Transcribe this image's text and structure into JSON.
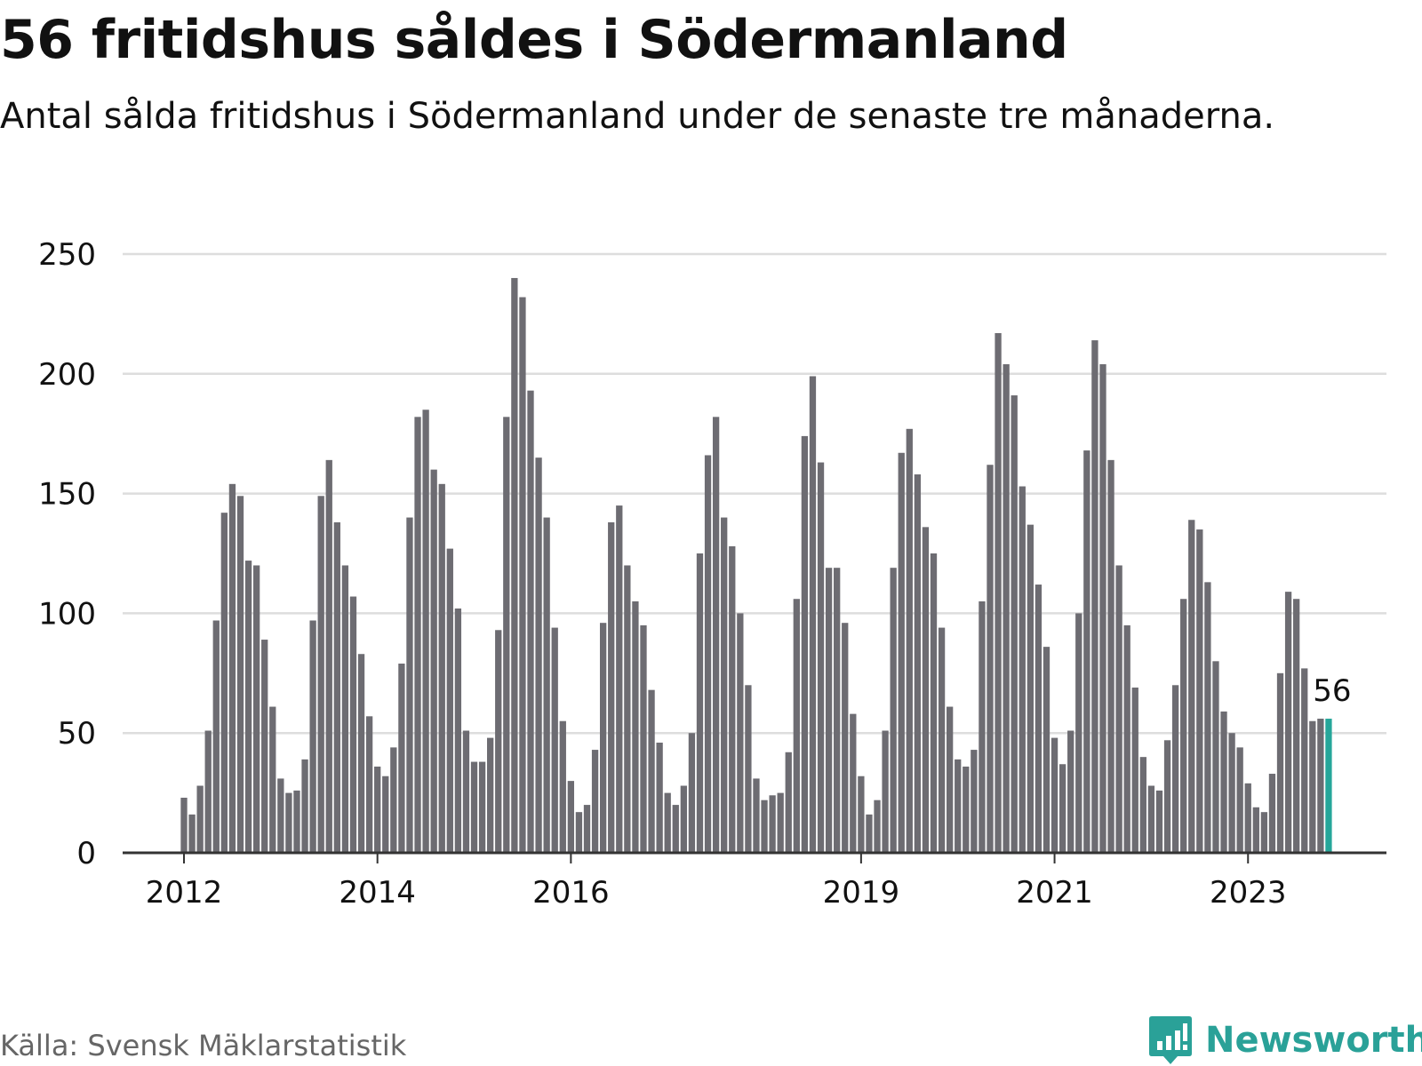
{
  "title": "56 fritidshus såldes i Södermanland",
  "subtitle": "Antal sålda fritidshus i Södermanland under de senaste tre månaderna.",
  "source": "Källa: Svensk Mäklarstatistik",
  "brand": "Newsworthy",
  "colors": {
    "bar": "#6d6c72",
    "highlight": "#26a69a",
    "grid": "#dddddd",
    "axis": "#333333",
    "text": "#111111",
    "brand": "#2aa198"
  },
  "chart_data": {
    "type": "bar",
    "xlabel": "",
    "ylabel": "",
    "ylim": [
      0,
      250
    ],
    "yticks": [
      0,
      50,
      100,
      150,
      200,
      250
    ],
    "xticks": [
      {
        "label": "2012",
        "index": 0
      },
      {
        "label": "2014",
        "index": 24
      },
      {
        "label": "2016",
        "index": 48
      },
      {
        "label": "2019",
        "index": 84
      },
      {
        "label": "2021",
        "index": 108
      },
      {
        "label": "2023",
        "index": 132
      }
    ],
    "grid": true,
    "legend": "none",
    "highlight_index": 142,
    "highlight_label": "56",
    "values": [
      23,
      16,
      28,
      51,
      97,
      142,
      154,
      149,
      122,
      120,
      89,
      61,
      31,
      25,
      26,
      39,
      97,
      149,
      164,
      138,
      120,
      107,
      83,
      57,
      36,
      32,
      44,
      79,
      140,
      182,
      185,
      160,
      154,
      127,
      102,
      51,
      38,
      38,
      48,
      93,
      182,
      240,
      232,
      193,
      165,
      140,
      94,
      55,
      30,
      17,
      20,
      43,
      96,
      138,
      145,
      120,
      105,
      95,
      68,
      46,
      25,
      20,
      28,
      50,
      125,
      166,
      182,
      140,
      128,
      100,
      70,
      31,
      22,
      24,
      25,
      42,
      106,
      174,
      199,
      163,
      119,
      119,
      96,
      58,
      32,
      16,
      22,
      51,
      119,
      167,
      177,
      158,
      136,
      125,
      94,
      61,
      39,
      36,
      43,
      105,
      162,
      217,
      204,
      191,
      153,
      137,
      112,
      86,
      48,
      37,
      51,
      100,
      168,
      214,
      204,
      164,
      120,
      95,
      69,
      40,
      28,
      26,
      47,
      70,
      106,
      139,
      135,
      113,
      80,
      59,
      50,
      44,
      29,
      19,
      17,
      33,
      75,
      109,
      106,
      77,
      55,
      56,
      56
    ]
  }
}
